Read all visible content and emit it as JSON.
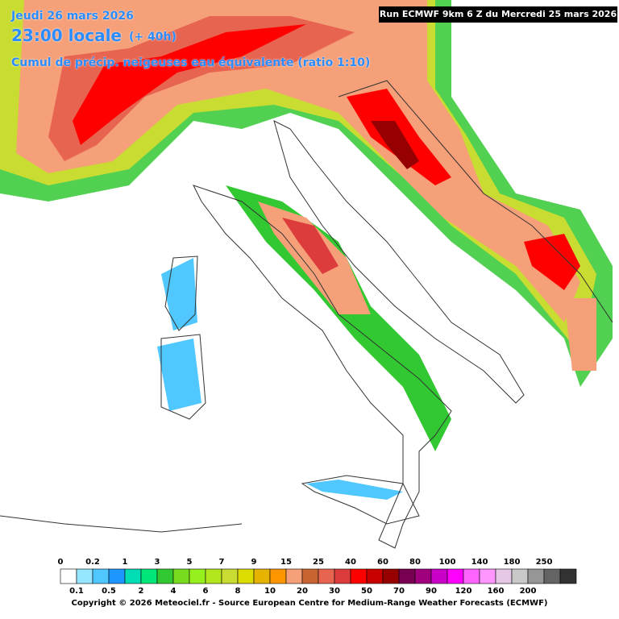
{
  "header": {
    "date": "Jeudi 26 mars 2026",
    "time": "23:00 locale",
    "lead": "(+ 40h)",
    "subtitle": "Cumul de précip. neigeuses  eau équivalente (ratio 1:10)",
    "run": "Run ECMWF 9km 6 Z du Mercredi 25 mars 2026"
  },
  "legend": {
    "labels": [
      "0",
      "0.1",
      "0.2",
      "0.5",
      "1",
      "2",
      "3",
      "4",
      "5",
      "6",
      "7",
      "8",
      "9",
      "10",
      "15",
      "20",
      "25",
      "30",
      "40",
      "50",
      "60",
      "70",
      "80",
      "90",
      "100",
      "120",
      "140",
      "160",
      "180",
      "200",
      "250"
    ],
    "colors": [
      "#ffffff",
      "#96e6ff",
      "#50c8ff",
      "#1e96ff",
      "#00dcb4",
      "#00e678",
      "#32c832",
      "#78dc1e",
      "#96f01e",
      "#b4e61e",
      "#c8dc32",
      "#dcdc00",
      "#e6b400",
      "#ff9600",
      "#f5a078",
      "#c86432",
      "#e66450",
      "#dc3c3c",
      "#ff0000",
      "#c80000",
      "#960000",
      "#780050",
      "#a0007d",
      "#c800c8",
      "#ff00ff",
      "#ff64ff",
      "#ff96ff",
      "#e6c8e6",
      "#c8c8c8",
      "#969696",
      "#646464",
      "#323232"
    ]
  },
  "footer": {
    "copyright": "Copyright © 2026 Meteociel.fr - Source European Centre for Medium-Range Weather Forecasts (ECMWF)"
  }
}
